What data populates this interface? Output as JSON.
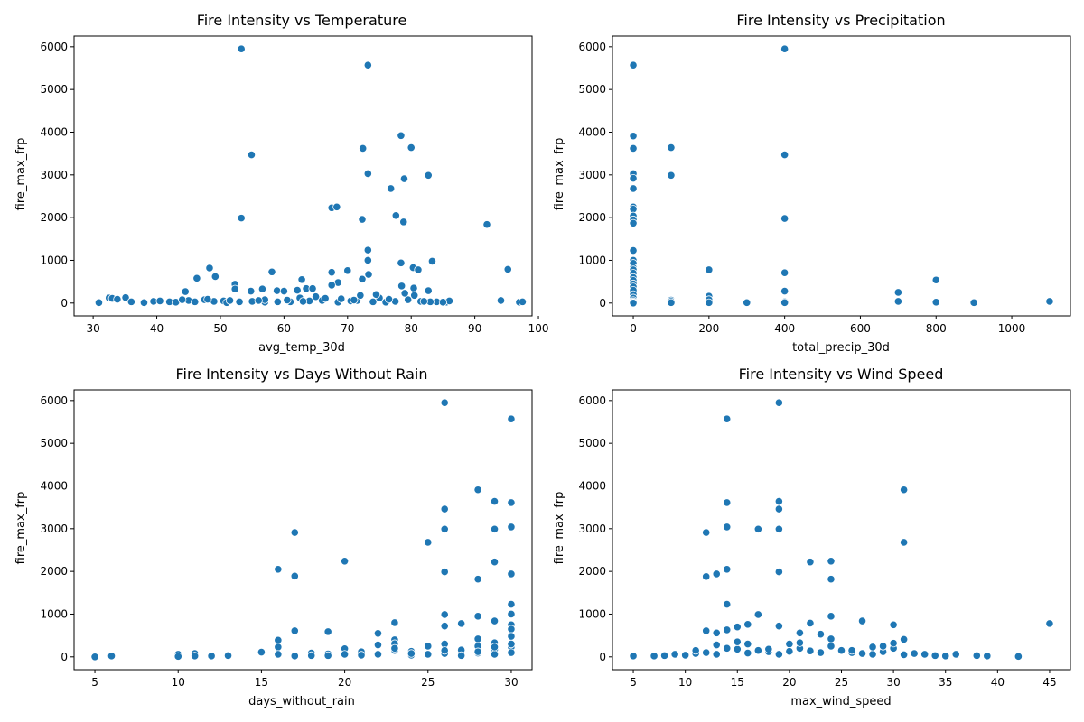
{
  "chart_data": [
    {
      "type": "scatter",
      "title": "Fire Intensity vs Temperature",
      "xlabel": "avg_temp_30d",
      "ylabel": "fire_max_frp",
      "xlim": [
        27,
        99
      ],
      "ylim": [
        -300,
        6250
      ],
      "xticks": [
        30,
        40,
        50,
        60,
        70,
        80,
        90,
        100
      ],
      "yticks": [
        0,
        1000,
        2000,
        3000,
        4000,
        5000,
        6000
      ],
      "grid": false,
      "color": "#1f77b4",
      "x": [
        53.3,
        73.2,
        54.9,
        78.4,
        80.0,
        72.4,
        73.2,
        78.9,
        82.7,
        76.8,
        77.6,
        78.8,
        72.3,
        67.5,
        68.3,
        53.3,
        91.9,
        73.2,
        73.2,
        83.3,
        78.4,
        80.3,
        48.3,
        81.1,
        95.2,
        49.2,
        58.1,
        70.0,
        67.5,
        73.3,
        72.3,
        68.5,
        62.8,
        67.5,
        52.3,
        46.3,
        52.3,
        63.5,
        62.1,
        64.5,
        44.5,
        58.9,
        54.8,
        56.6,
        94.1,
        78.5,
        80.4,
        82.7,
        60.0,
        35.1,
        32.5,
        33.0,
        33.8,
        30.9,
        36.0,
        39.5,
        42.0,
        45.0,
        47.5,
        50.5,
        55.0,
        61.0,
        66.0,
        70.5,
        75.0,
        77.5,
        79.5,
        84.0,
        85.5,
        97.0,
        97.5,
        38.0,
        43.0,
        46.0,
        49.0,
        51.0,
        53.0,
        57.0,
        59.0,
        64.0,
        68.5,
        71.5,
        74.0,
        76.0,
        81.5,
        83.0,
        86.0,
        65.0,
        69.0,
        72.0,
        57.0,
        62.5,
        74.5,
        79.0,
        80.5,
        48.0,
        51.5,
        60.5,
        66.5,
        71.0,
        76.5,
        82.0,
        85.0,
        40.5,
        44.0,
        56.0,
        63.0
      ],
      "y": [
        5950,
        5570,
        3470,
        3920,
        3640,
        3620,
        3030,
        2910,
        2990,
        2680,
        2050,
        1900,
        1960,
        2230,
        2250,
        1990,
        1840,
        1240,
        1000,
        980,
        940,
        830,
        820,
        780,
        790,
        620,
        730,
        760,
        720,
        670,
        560,
        480,
        550,
        420,
        440,
        580,
        330,
        340,
        300,
        340,
        270,
        290,
        280,
        330,
        60,
        400,
        350,
        290,
        280,
        130,
        120,
        110,
        90,
        10,
        30,
        40,
        30,
        60,
        80,
        50,
        40,
        30,
        60,
        50,
        120,
        40,
        80,
        30,
        20,
        20,
        30,
        10,
        20,
        30,
        40,
        10,
        30,
        20,
        30,
        50,
        20,
        60,
        30,
        20,
        40,
        30,
        50,
        150,
        100,
        180,
        80,
        120,
        200,
        230,
        180,
        90,
        60,
        70,
        110,
        70,
        90,
        40,
        20,
        50,
        80,
        60,
        40
      ]
    },
    {
      "type": "scatter",
      "title": "Fire Intensity vs Precipitation",
      "xlabel": "total_precip_30d",
      "ylabel": "fire_max_frp",
      "xlim": [
        -55,
        1155
      ],
      "ylim": [
        -300,
        6250
      ],
      "xticks": [
        0,
        200,
        400,
        600,
        800,
        1000
      ],
      "yticks": [
        0,
        1000,
        2000,
        3000,
        4000,
        5000,
        6000
      ],
      "grid": false,
      "color": "#1f77b4",
      "x": [
        0,
        0,
        0,
        0,
        0,
        0,
        0,
        0,
        0,
        0,
        0,
        0,
        0,
        0,
        0,
        0,
        0,
        0,
        0,
        0,
        0,
        0,
        0,
        0,
        0,
        0,
        0,
        0,
        100,
        100,
        100,
        100,
        100,
        200,
        200,
        200,
        200,
        300,
        400,
        400,
        400,
        400,
        400,
        400,
        400,
        700,
        700,
        800,
        800,
        900,
        1100
      ],
      "y": [
        5570,
        3910,
        3620,
        3030,
        2920,
        2680,
        2250,
        2200,
        2040,
        1950,
        1870,
        1230,
        1000,
        930,
        830,
        780,
        700,
        600,
        530,
        450,
        380,
        300,
        200,
        120,
        60,
        30,
        10,
        0,
        3640,
        2990,
        70,
        40,
        10,
        780,
        160,
        80,
        10,
        10,
        5950,
        3470,
        1980,
        710,
        280,
        30,
        10,
        250,
        40,
        540,
        20,
        10,
        40
      ]
    },
    {
      "type": "scatter",
      "title": "Fire Intensity vs Days Without Rain",
      "xlabel": "days_without_rain",
      "ylabel": "fire_max_frp",
      "xlim": [
        3.75,
        31.25
      ],
      "ylim": [
        -300,
        6250
      ],
      "xticks": [
        5,
        10,
        15,
        20,
        25,
        30
      ],
      "yticks": [
        0,
        1000,
        2000,
        3000,
        4000,
        5000,
        6000
      ],
      "grid": false,
      "color": "#1f77b4",
      "x": [
        26,
        30,
        28,
        29,
        30,
        26,
        30,
        29,
        17,
        26,
        25,
        29,
        16,
        20,
        26,
        30,
        17,
        28,
        30,
        26,
        30,
        28,
        29,
        23,
        27,
        26,
        17,
        19,
        22,
        16,
        23,
        15,
        5,
        6,
        10,
        10,
        11,
        11,
        12,
        13,
        16,
        16,
        17,
        18,
        18,
        19,
        19,
        20,
        20,
        21,
        21,
        22,
        22,
        23,
        23,
        24,
        24,
        25,
        25,
        26,
        26,
        27,
        27,
        28,
        28,
        28,
        29,
        29,
        29,
        30,
        30,
        30,
        30,
        30,
        23,
        24,
        26,
        28,
        29,
        30
      ],
      "y": [
        5950,
        5570,
        3910,
        3640,
        3610,
        3460,
        3040,
        2990,
        2910,
        2990,
        2680,
        2220,
        2050,
        2240,
        1990,
        1940,
        1890,
        1820,
        1230,
        990,
        1000,
        950,
        840,
        800,
        780,
        720,
        610,
        590,
        550,
        390,
        400,
        110,
        0,
        20,
        60,
        10,
        80,
        20,
        20,
        30,
        230,
        60,
        20,
        90,
        30,
        70,
        30,
        190,
        60,
        120,
        40,
        280,
        60,
        310,
        150,
        130,
        40,
        250,
        60,
        300,
        80,
        160,
        30,
        420,
        250,
        90,
        330,
        170,
        60,
        750,
        650,
        480,
        230,
        100,
        200,
        80,
        150,
        120,
        230,
        300
      ]
    },
    {
      "type": "scatter",
      "title": "Fire Intensity vs Wind Speed",
      "xlabel": "max_wind_speed",
      "ylabel": "fire_max_frp",
      "xlim": [
        3,
        47
      ],
      "ylim": [
        -300,
        6250
      ],
      "xticks": [
        5,
        10,
        15,
        20,
        25,
        30,
        35,
        40,
        45
      ],
      "yticks": [
        0,
        1000,
        2000,
        3000,
        4000,
        5000,
        6000
      ],
      "grid": false,
      "color": "#1f77b4",
      "x": [
        19,
        14,
        31,
        19,
        14,
        19,
        14,
        17,
        19,
        12,
        31,
        22,
        24,
        14,
        19,
        13,
        12,
        24,
        14,
        17,
        24,
        27,
        22,
        30,
        45,
        19,
        15,
        16,
        14,
        12,
        21,
        13,
        23,
        31,
        5,
        7,
        8,
        9,
        10,
        11,
        12,
        13,
        14,
        15,
        16,
        17,
        18,
        19,
        20,
        21,
        22,
        23,
        24,
        25,
        26,
        27,
        28,
        29,
        30,
        31,
        32,
        33,
        34,
        35,
        36,
        38,
        39,
        42,
        11,
        13,
        15,
        16,
        18,
        20,
        21,
        24,
        26,
        28,
        29,
        30
      ],
      "y": [
        5950,
        5570,
        3910,
        3640,
        3610,
        3460,
        3040,
        2990,
        2990,
        2910,
        2680,
        2220,
        2240,
        2050,
        1990,
        1940,
        1880,
        1820,
        1230,
        990,
        950,
        840,
        790,
        750,
        780,
        720,
        700,
        760,
        630,
        610,
        560,
        560,
        530,
        410,
        20,
        20,
        30,
        60,
        40,
        80,
        100,
        60,
        200,
        180,
        90,
        150,
        120,
        60,
        300,
        200,
        140,
        100,
        250,
        150,
        100,
        80,
        60,
        120,
        200,
        50,
        80,
        60,
        30,
        20,
        60,
        30,
        20,
        10,
        150,
        280,
        350,
        300,
        180,
        130,
        330,
        420,
        150,
        230,
        250,
        320
      ]
    }
  ]
}
